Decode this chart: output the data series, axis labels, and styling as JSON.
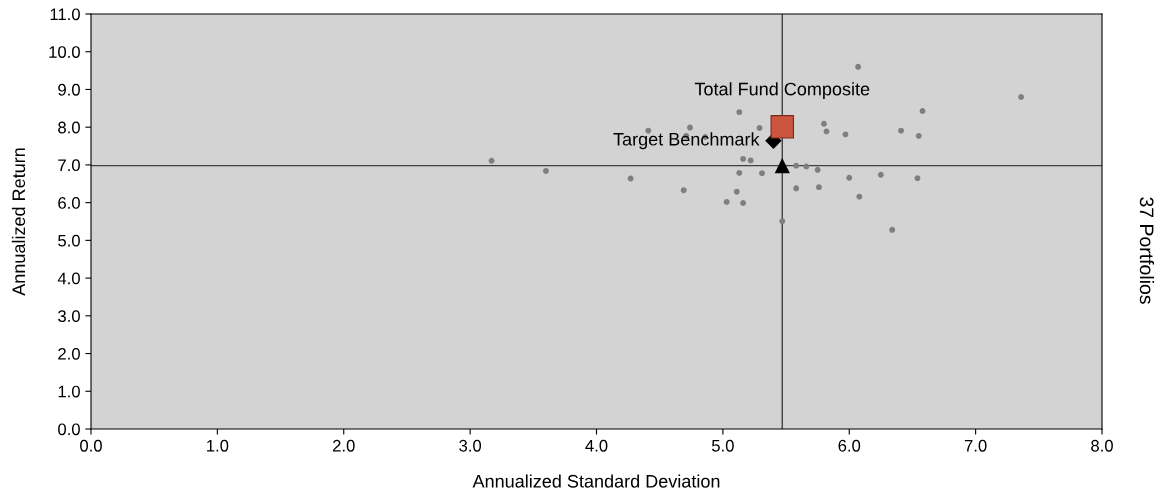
{
  "chart_data": {
    "type": "scatter",
    "xlabel": "Annualized Standard Deviation",
    "ylabel": "Annualized Return",
    "annotations": [
      "37 Portfolios"
    ],
    "xlim": [
      0,
      8
    ],
    "ylim": [
      0,
      11
    ],
    "xticks": [
      {
        "value": 0,
        "label": "0.0"
      },
      {
        "value": 1,
        "label": "1.0"
      },
      {
        "value": 2,
        "label": "2.0"
      },
      {
        "value": 3,
        "label": "3.0"
      },
      {
        "value": 4,
        "label": "4.0"
      },
      {
        "value": 5,
        "label": "5.0"
      },
      {
        "value": 6,
        "label": "6.0"
      },
      {
        "value": 7,
        "label": "7.0"
      },
      {
        "value": 8,
        "label": "8.0"
      }
    ],
    "yticks": [
      {
        "value": 0,
        "label": "0.0"
      },
      {
        "value": 1,
        "label": "1.0"
      },
      {
        "value": 2,
        "label": "2.0"
      },
      {
        "value": 3,
        "label": "3.0"
      },
      {
        "value": 4,
        "label": "4.0"
      },
      {
        "value": 5,
        "label": "5.0"
      },
      {
        "value": 6,
        "label": "6.0"
      },
      {
        "value": 7,
        "label": "7.0"
      },
      {
        "value": 8,
        "label": "8.0"
      },
      {
        "value": 9,
        "label": "9.0"
      },
      {
        "value": 10,
        "label": "10.0"
      },
      {
        "value": 11,
        "label": "11.0"
      }
    ],
    "grid": false,
    "legend": false,
    "ref_lines": [
      {
        "axis": "x",
        "value": 5.47,
        "color": "#404040"
      },
      {
        "axis": "y",
        "value": 6.98,
        "color": "#404040"
      }
    ],
    "series": [
      {
        "color": "#7f7f7f",
        "marker": "circle",
        "x": [
          3.17,
          3.6,
          4.27,
          6.07,
          5.13,
          4.41,
          4.74,
          4.71,
          4.86,
          5.29,
          5.8,
          5.82,
          5.97,
          5.16,
          5.22,
          5.58,
          5.66,
          5.75,
          5.13,
          5.31,
          6.0,
          6.25,
          4.69,
          5.11,
          5.58,
          5.76,
          6.08,
          5.03,
          5.16,
          5.47,
          7.36,
          6.58,
          6.41,
          6.55,
          6.54,
          6.34
        ],
        "values": [
          7.11,
          6.84,
          6.64,
          9.6,
          8.4,
          7.91,
          7.99,
          7.77,
          7.74,
          7.98,
          8.09,
          7.89,
          7.81,
          7.16,
          7.12,
          6.98,
          6.96,
          6.87,
          6.79,
          6.78,
          6.66,
          6.74,
          6.33,
          6.29,
          6.38,
          6.41,
          6.16,
          6.02,
          5.99,
          5.51,
          8.8,
          8.43,
          7.91,
          7.77,
          6.65,
          5.28
        ]
      },
      {
        "color": "#000000",
        "marker": "triangle",
        "x": [
          5.47
        ],
        "values": [
          6.98
        ]
      },
      {
        "name": "Target Benchmark",
        "color": "#000000",
        "marker": "diamond",
        "x": [
          5.4
        ],
        "values": [
          7.64
        ]
      },
      {
        "name": "Total Fund Composite",
        "color": "#cc5540",
        "marker": "square",
        "x": [
          5.47
        ],
        "values": [
          8.01
        ]
      }
    ]
  }
}
